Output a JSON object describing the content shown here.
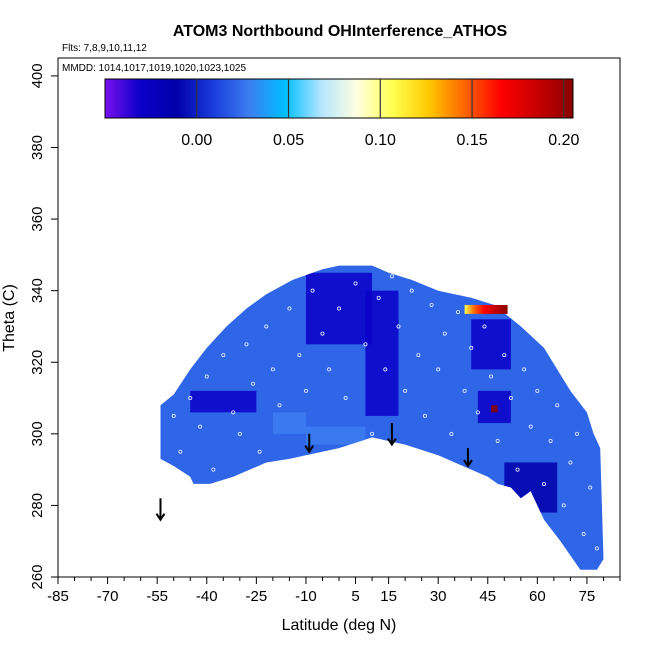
{
  "chart_data": {
    "type": "heatmap",
    "title": "ATOM3 Northbound OHInterference_ATHOS",
    "flights_label": "Flts: 7,8,9,10,11,12",
    "dates_label": "MMDD: 1014,1017,1019,1020,1023,1025",
    "xlabel": "Latitude (deg N)",
    "ylabel": "Theta (C)",
    "xlim": [
      -85,
      85
    ],
    "ylim": [
      260,
      405
    ],
    "x_ticks": [
      -85,
      -70,
      -55,
      -40,
      -25,
      -10,
      5,
      15,
      30,
      45,
      60,
      75
    ],
    "y_ticks": [
      260,
      280,
      300,
      320,
      340,
      360,
      380,
      400
    ],
    "colorbar": {
      "range": [
        -0.05,
        0.205
      ],
      "ticks": [
        "0.00",
        "0.05",
        "0.10",
        "0.15",
        "0.20"
      ],
      "tick_values": [
        0.0,
        0.05,
        0.1,
        0.15,
        0.2
      ],
      "colors": [
        "#7a0ff0",
        "#0a00c8",
        "#0000aa",
        "#1a3cdc",
        "#3c7cf0",
        "#00bfff",
        "#b4e6ff",
        "#ffffe0",
        "#ffff50",
        "#ffc800",
        "#ff6400",
        "#ff0000",
        "#c80000",
        "#8b0000"
      ]
    },
    "region_outline": [
      [
        -54,
        293
      ],
      [
        -54,
        308
      ],
      [
        -50,
        311
      ],
      [
        -45,
        318
      ],
      [
        -40,
        324
      ],
      [
        -34,
        330
      ],
      [
        -28,
        335
      ],
      [
        -22,
        339
      ],
      [
        -14,
        343
      ],
      [
        -5,
        346
      ],
      [
        0,
        347
      ],
      [
        10,
        347
      ],
      [
        15,
        345
      ],
      [
        22,
        343
      ],
      [
        30,
        340
      ],
      [
        40,
        338
      ],
      [
        47,
        336
      ],
      [
        55,
        330
      ],
      [
        62,
        324
      ],
      [
        66,
        318
      ],
      [
        70,
        312
      ],
      [
        75,
        306
      ],
      [
        77,
        300
      ],
      [
        79,
        296
      ],
      [
        80,
        265
      ],
      [
        78,
        262
      ],
      [
        73,
        262
      ],
      [
        67,
        270
      ],
      [
        62,
        276
      ],
      [
        58,
        284
      ],
      [
        55,
        282
      ],
      [
        52,
        285
      ],
      [
        48,
        286
      ],
      [
        45,
        288
      ],
      [
        40,
        290
      ],
      [
        30,
        294
      ],
      [
        20,
        297
      ],
      [
        10,
        299
      ],
      [
        0,
        296
      ],
      [
        -10,
        294
      ],
      [
        -15,
        293
      ],
      [
        -22,
        292
      ],
      [
        -32,
        288
      ],
      [
        -39,
        286
      ],
      [
        -44,
        286
      ],
      [
        -45,
        288
      ],
      [
        -50,
        291
      ]
    ],
    "value_patches": [
      {
        "lat": [
          -10,
          10
        ],
        "theta": [
          325,
          345
        ],
        "value": -0.03
      },
      {
        "lat": [
          8,
          18
        ],
        "theta": [
          305,
          340
        ],
        "value": -0.03
      },
      {
        "lat": [
          -45,
          -25
        ],
        "theta": [
          306,
          312
        ],
        "value": -0.025
      },
      {
        "lat": [
          40,
          52
        ],
        "theta": [
          318,
          332
        ],
        "value": -0.04
      },
      {
        "lat": [
          42,
          52
        ],
        "theta": [
          303,
          312
        ],
        "value": -0.03
      },
      {
        "lat": [
          46,
          48
        ],
        "theta": [
          306,
          308
        ],
        "value": 0.2
      },
      {
        "lat": [
          50,
          66
        ],
        "theta": [
          278,
          292
        ],
        "value": -0.02
      },
      {
        "lat": [
          -10,
          8
        ],
        "theta": [
          297,
          302
        ],
        "value": 0.03
      },
      {
        "lat": [
          -20,
          -10
        ],
        "theta": [
          300,
          306
        ],
        "value": 0.02
      }
    ],
    "edge_values": [
      {
        "lat": 38,
        "value": 0.1
      },
      {
        "lat": 41,
        "value": 0.14
      },
      {
        "lat": 44,
        "value": 0.17
      },
      {
        "lat": 47,
        "value": 0.19
      },
      {
        "lat": 51,
        "value": 0.205
      }
    ],
    "markers": [
      {
        "lat": -54,
        "theta_top": 282,
        "theta_bottom": 276
      },
      {
        "lat": -9,
        "theta_top": 300,
        "theta_bottom": 295
      },
      {
        "lat": 16,
        "theta_top": 303,
        "theta_bottom": 297
      },
      {
        "lat": 39,
        "theta_top": 296,
        "theta_bottom": 291
      }
    ],
    "sample_points": [
      [
        -50,
        305
      ],
      [
        -48,
        295
      ],
      [
        -45,
        310
      ],
      [
        -42,
        302
      ],
      [
        -40,
        316
      ],
      [
        -38,
        290
      ],
      [
        -35,
        322
      ],
      [
        -32,
        306
      ],
      [
        -30,
        300
      ],
      [
        -28,
        325
      ],
      [
        -26,
        314
      ],
      [
        -24,
        295
      ],
      [
        -22,
        330
      ],
      [
        -20,
        318
      ],
      [
        -18,
        308
      ],
      [
        -15,
        335
      ],
      [
        -12,
        322
      ],
      [
        -10,
        312
      ],
      [
        -8,
        340
      ],
      [
        -5,
        328
      ],
      [
        -3,
        318
      ],
      [
        0,
        335
      ],
      [
        2,
        310
      ],
      [
        5,
        342
      ],
      [
        8,
        325
      ],
      [
        10,
        300
      ],
      [
        12,
        338
      ],
      [
        14,
        318
      ],
      [
        16,
        344
      ],
      [
        18,
        330
      ],
      [
        20,
        312
      ],
      [
        22,
        340
      ],
      [
        24,
        322
      ],
      [
        26,
        305
      ],
      [
        28,
        336
      ],
      [
        30,
        318
      ],
      [
        32,
        328
      ],
      [
        34,
        300
      ],
      [
        36,
        334
      ],
      [
        38,
        312
      ],
      [
        40,
        324
      ],
      [
        42,
        306
      ],
      [
        44,
        330
      ],
      [
        46,
        316
      ],
      [
        48,
        298
      ],
      [
        50,
        322
      ],
      [
        52,
        310
      ],
      [
        54,
        290
      ],
      [
        56,
        318
      ],
      [
        58,
        302
      ],
      [
        60,
        312
      ],
      [
        62,
        286
      ],
      [
        64,
        298
      ],
      [
        66,
        308
      ],
      [
        68,
        280
      ],
      [
        70,
        292
      ],
      [
        72,
        300
      ],
      [
        74,
        272
      ],
      [
        76,
        285
      ],
      [
        78,
        268
      ]
    ]
  }
}
